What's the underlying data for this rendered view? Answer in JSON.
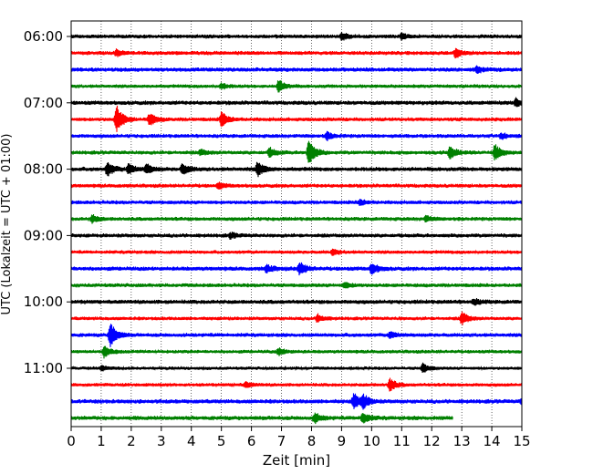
{
  "chart_data": {
    "type": "line",
    "title": "",
    "xlabel": "Zeit  [min]",
    "ylabel": "UTC (Lokalzeit = UTC + 01:00)",
    "xlim": [
      0,
      15
    ],
    "x_ticks": [
      "0",
      "1",
      "2",
      "3",
      "4",
      "5",
      "6",
      "7",
      "8",
      "9",
      "10",
      "11",
      "12",
      "13",
      "14",
      "15"
    ],
    "y_tick_labels": [
      {
        "label": "06:00",
        "trace": 0
      },
      {
        "label": "07:00",
        "trace": 4
      },
      {
        "label": "08:00",
        "trace": 8
      },
      {
        "label": "09:00",
        "trace": 12
      },
      {
        "label": "10:00",
        "trace": 16
      },
      {
        "label": "11:00",
        "trace": 20
      }
    ],
    "grid": "vertical dotted at each minute",
    "trace_interval_minutes": 15,
    "colors": [
      "#000000",
      "#ff0000",
      "#0000ff",
      "#008000"
    ],
    "traces": [
      {
        "start": "06:00",
        "color": "#000000",
        "noise": 2.4,
        "events": [
          {
            "t": 9.0,
            "amp": 4
          },
          {
            "t": 11.0,
            "amp": 3
          }
        ],
        "end": 15
      },
      {
        "start": "06:15",
        "color": "#ff0000",
        "noise": 2.4,
        "events": [
          {
            "t": 12.8,
            "amp": 5
          },
          {
            "t": 1.5,
            "amp": 3
          }
        ],
        "end": 15
      },
      {
        "start": "06:30",
        "color": "#0000ff",
        "noise": 2.6,
        "events": [
          {
            "t": 13.5,
            "amp": 3
          }
        ],
        "end": 15
      },
      {
        "start": "06:45",
        "color": "#008000",
        "noise": 2.2,
        "events": [
          {
            "t": 6.9,
            "amp": 7
          },
          {
            "t": 5.0,
            "amp": 3
          }
        ],
        "end": 15
      },
      {
        "start": "07:00",
        "color": "#000000",
        "noise": 2.6,
        "events": [
          {
            "t": 14.8,
            "amp": 4
          }
        ],
        "end": 15
      },
      {
        "start": "07:15",
        "color": "#ff0000",
        "noise": 2.4,
        "events": [
          {
            "t": 1.5,
            "amp": 16
          },
          {
            "t": 2.6,
            "amp": 7
          },
          {
            "t": 5.0,
            "amp": 8
          }
        ],
        "end": 15
      },
      {
        "start": "07:30",
        "color": "#0000ff",
        "noise": 2.4,
        "events": [
          {
            "t": 8.5,
            "amp": 4
          },
          {
            "t": 14.3,
            "amp": 3
          }
        ],
        "end": 15
      },
      {
        "start": "07:45",
        "color": "#008000",
        "noise": 2.4,
        "events": [
          {
            "t": 7.9,
            "amp": 14
          },
          {
            "t": 12.6,
            "amp": 7
          },
          {
            "t": 14.1,
            "amp": 9
          },
          {
            "t": 6.6,
            "amp": 5
          },
          {
            "t": 4.3,
            "amp": 3
          }
        ],
        "end": 15
      },
      {
        "start": "08:00",
        "color": "#000000",
        "noise": 2.6,
        "events": [
          {
            "t": 1.2,
            "amp": 8
          },
          {
            "t": 1.9,
            "amp": 6
          },
          {
            "t": 3.7,
            "amp": 6
          },
          {
            "t": 6.2,
            "amp": 8
          },
          {
            "t": 2.5,
            "amp": 5
          }
        ],
        "end": 15
      },
      {
        "start": "08:15",
        "color": "#ff0000",
        "noise": 2.4,
        "events": [
          {
            "t": 4.9,
            "amp": 3
          }
        ],
        "end": 15
      },
      {
        "start": "08:30",
        "color": "#0000ff",
        "noise": 2.4,
        "events": [
          {
            "t": 9.6,
            "amp": 3
          }
        ],
        "end": 15
      },
      {
        "start": "08:45",
        "color": "#008000",
        "noise": 2.4,
        "events": [
          {
            "t": 0.7,
            "amp": 4
          },
          {
            "t": 11.8,
            "amp": 3
          }
        ],
        "end": 15
      },
      {
        "start": "09:00",
        "color": "#000000",
        "noise": 2.4,
        "events": [
          {
            "t": 5.3,
            "amp": 3
          }
        ],
        "end": 15
      },
      {
        "start": "09:15",
        "color": "#ff0000",
        "noise": 2.2,
        "events": [
          {
            "t": 8.7,
            "amp": 3
          }
        ],
        "end": 15
      },
      {
        "start": "09:30",
        "color": "#0000ff",
        "noise": 2.6,
        "events": [
          {
            "t": 7.6,
            "amp": 7
          },
          {
            "t": 10.0,
            "amp": 6
          },
          {
            "t": 6.5,
            "amp": 4
          }
        ],
        "end": 15
      },
      {
        "start": "09:45",
        "color": "#008000",
        "noise": 2.4,
        "events": [
          {
            "t": 9.1,
            "amp": 3
          }
        ],
        "end": 15
      },
      {
        "start": "10:00",
        "color": "#000000",
        "noise": 2.6,
        "events": [
          {
            "t": 13.4,
            "amp": 3
          }
        ],
        "end": 15
      },
      {
        "start": "10:15",
        "color": "#ff0000",
        "noise": 2.2,
        "events": [
          {
            "t": 13.0,
            "amp": 7
          },
          {
            "t": 8.2,
            "amp": 4
          }
        ],
        "end": 15
      },
      {
        "start": "10:30",
        "color": "#0000ff",
        "noise": 2.4,
        "events": [
          {
            "t": 1.3,
            "amp": 14
          },
          {
            "t": 10.6,
            "amp": 4
          }
        ],
        "end": 15
      },
      {
        "start": "10:45",
        "color": "#008000",
        "noise": 2.2,
        "events": [
          {
            "t": 1.1,
            "amp": 6
          },
          {
            "t": 6.9,
            "amp": 4
          }
        ],
        "end": 15
      },
      {
        "start": "11:00",
        "color": "#000000",
        "noise": 2.0,
        "events": [
          {
            "t": 11.7,
            "amp": 5
          },
          {
            "t": 1.0,
            "amp": 3
          }
        ],
        "end": 15
      },
      {
        "start": "11:15",
        "color": "#ff0000",
        "noise": 2.2,
        "events": [
          {
            "t": 10.6,
            "amp": 7
          },
          {
            "t": 5.8,
            "amp": 3
          }
        ],
        "end": 15
      },
      {
        "start": "11:30",
        "color": "#0000ff",
        "noise": 2.6,
        "events": [
          {
            "t": 9.4,
            "amp": 9
          },
          {
            "t": 9.7,
            "amp": 7
          },
          {
            "t": 15.0,
            "amp": 4
          }
        ],
        "end": 15
      },
      {
        "start": "11:45",
        "color": "#008000",
        "noise": 2.6,
        "events": [
          {
            "t": 8.1,
            "amp": 5
          },
          {
            "t": 9.7,
            "amp": 6
          }
        ],
        "end": 12.7
      }
    ]
  }
}
